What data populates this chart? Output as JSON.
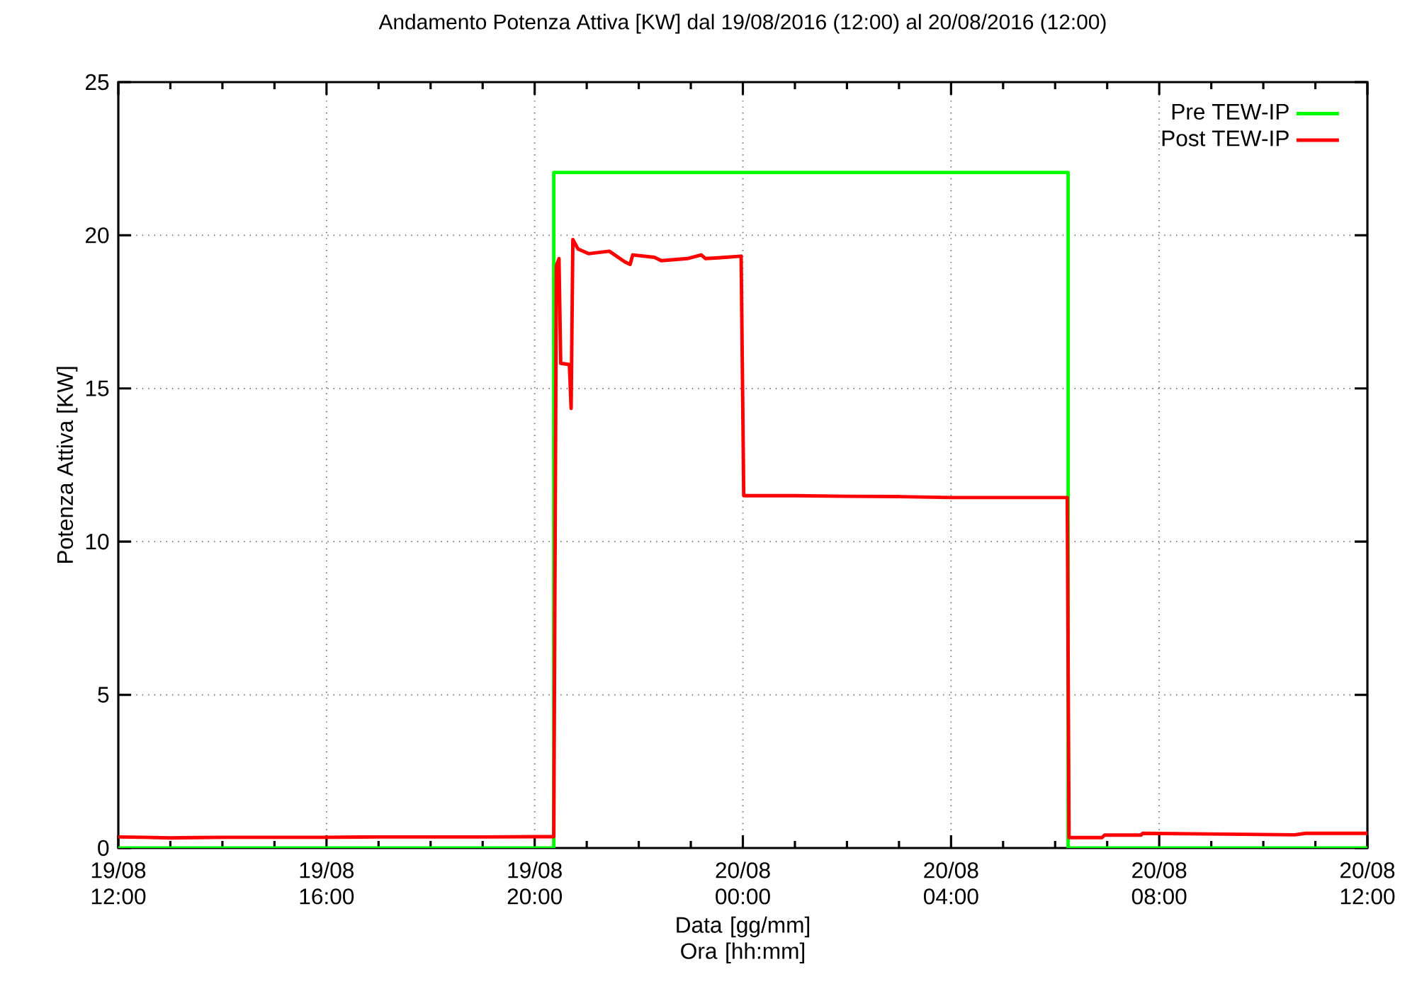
{
  "chart_data": {
    "type": "line",
    "title": "Andamento Potenza Attiva [KW] dal 19/08/2016 (12:00) al 20/08/2016 (12:00)",
    "xlabel": "Data [gg/mm] Ora [hh:mm]",
    "ylabel": "Potenza Attiva [KW]",
    "xlim": [
      "2016-08-19T12:00",
      "2016-08-20T12:00"
    ],
    "xticks": [
      {
        "value": "2016-08-19T12:00",
        "label": "19/08 12:00"
      },
      {
        "value": "2016-08-19T16:00",
        "label": "19/08 16:00"
      },
      {
        "value": "2016-08-19T20:00",
        "label": "19/08 20:00"
      },
      {
        "value": "2016-08-20T00:00",
        "label": "20/08 00:00"
      },
      {
        "value": "2016-08-20T04:00",
        "label": "20/08 04:00"
      },
      {
        "value": "2016-08-20T08:00",
        "label": "20/08 08:00"
      },
      {
        "value": "2016-08-20T12:00",
        "label": "20/08 12:00"
      }
    ],
    "ylim": [
      0,
      25
    ],
    "yticks": [
      0,
      5,
      10,
      15,
      20,
      25
    ],
    "grid": true,
    "legend": "top right",
    "marker": "none",
    "line_style": "solid",
    "series": [
      {
        "name": "Pre TEW-IP",
        "color": "#00ff00",
        "x": [
          "2016-08-19T12:00",
          "2016-08-19T20:22",
          "2016-08-19T20:22",
          "2016-08-20T06:15",
          "2016-08-20T06:15",
          "2016-08-20T12:00"
        ],
        "values": [
          0,
          0,
          22.05,
          22.05,
          0,
          0
        ]
      },
      {
        "name": "Post TEW-IP",
        "color": "#ff0000",
        "x": [
          "2016-08-19T12:00",
          "2016-08-19T12:30",
          "2016-08-19T13:00",
          "2016-08-19T13:30",
          "2016-08-19T14:00",
          "2016-08-19T15:00",
          "2016-08-19T16:00",
          "2016-08-19T17:00",
          "2016-08-19T18:00",
          "2016-08-19T19:00",
          "2016-08-19T20:00",
          "2016-08-19T20:22",
          "2016-08-19T20:25",
          "2016-08-19T20:28",
          "2016-08-19T20:30",
          "2016-08-19T20:40",
          "2016-08-19T20:42",
          "2016-08-19T20:44",
          "2016-08-19T20:50",
          "2016-08-19T21:02",
          "2016-08-19T21:26",
          "2016-08-19T21:44",
          "2016-08-19T21:50",
          "2016-08-19T21:53",
          "2016-08-19T22:18",
          "2016-08-19T22:26",
          "2016-08-19T22:56",
          "2016-08-19T23:12",
          "2016-08-19T23:17",
          "2016-08-19T23:40",
          "2016-08-19T23:58",
          "2016-08-20T00:01",
          "2016-08-20T01:00",
          "2016-08-20T02:00",
          "2016-08-20T03:00",
          "2016-08-20T04:00",
          "2016-08-20T05:00",
          "2016-08-20T06:00",
          "2016-08-20T06:14",
          "2016-08-20T06:16",
          "2016-08-20T06:54",
          "2016-08-20T06:57",
          "2016-08-20T07:39",
          "2016-08-20T07:41",
          "2016-08-20T08:54",
          "2016-08-20T10:36",
          "2016-08-20T10:49",
          "2016-08-20T12:00"
        ],
        "values": [
          0.36,
          0.35,
          0.33,
          0.34,
          0.35,
          0.35,
          0.35,
          0.36,
          0.36,
          0.36,
          0.37,
          0.37,
          19.0,
          19.24,
          15.82,
          15.78,
          14.35,
          19.86,
          19.55,
          19.4,
          19.48,
          19.13,
          19.05,
          19.36,
          19.28,
          19.17,
          19.24,
          19.36,
          19.24,
          19.28,
          19.32,
          11.5,
          11.5,
          11.48,
          11.47,
          11.44,
          11.44,
          11.44,
          11.44,
          0.34,
          0.34,
          0.42,
          0.42,
          0.48,
          0.46,
          0.43,
          0.48,
          0.48
        ]
      }
    ]
  }
}
